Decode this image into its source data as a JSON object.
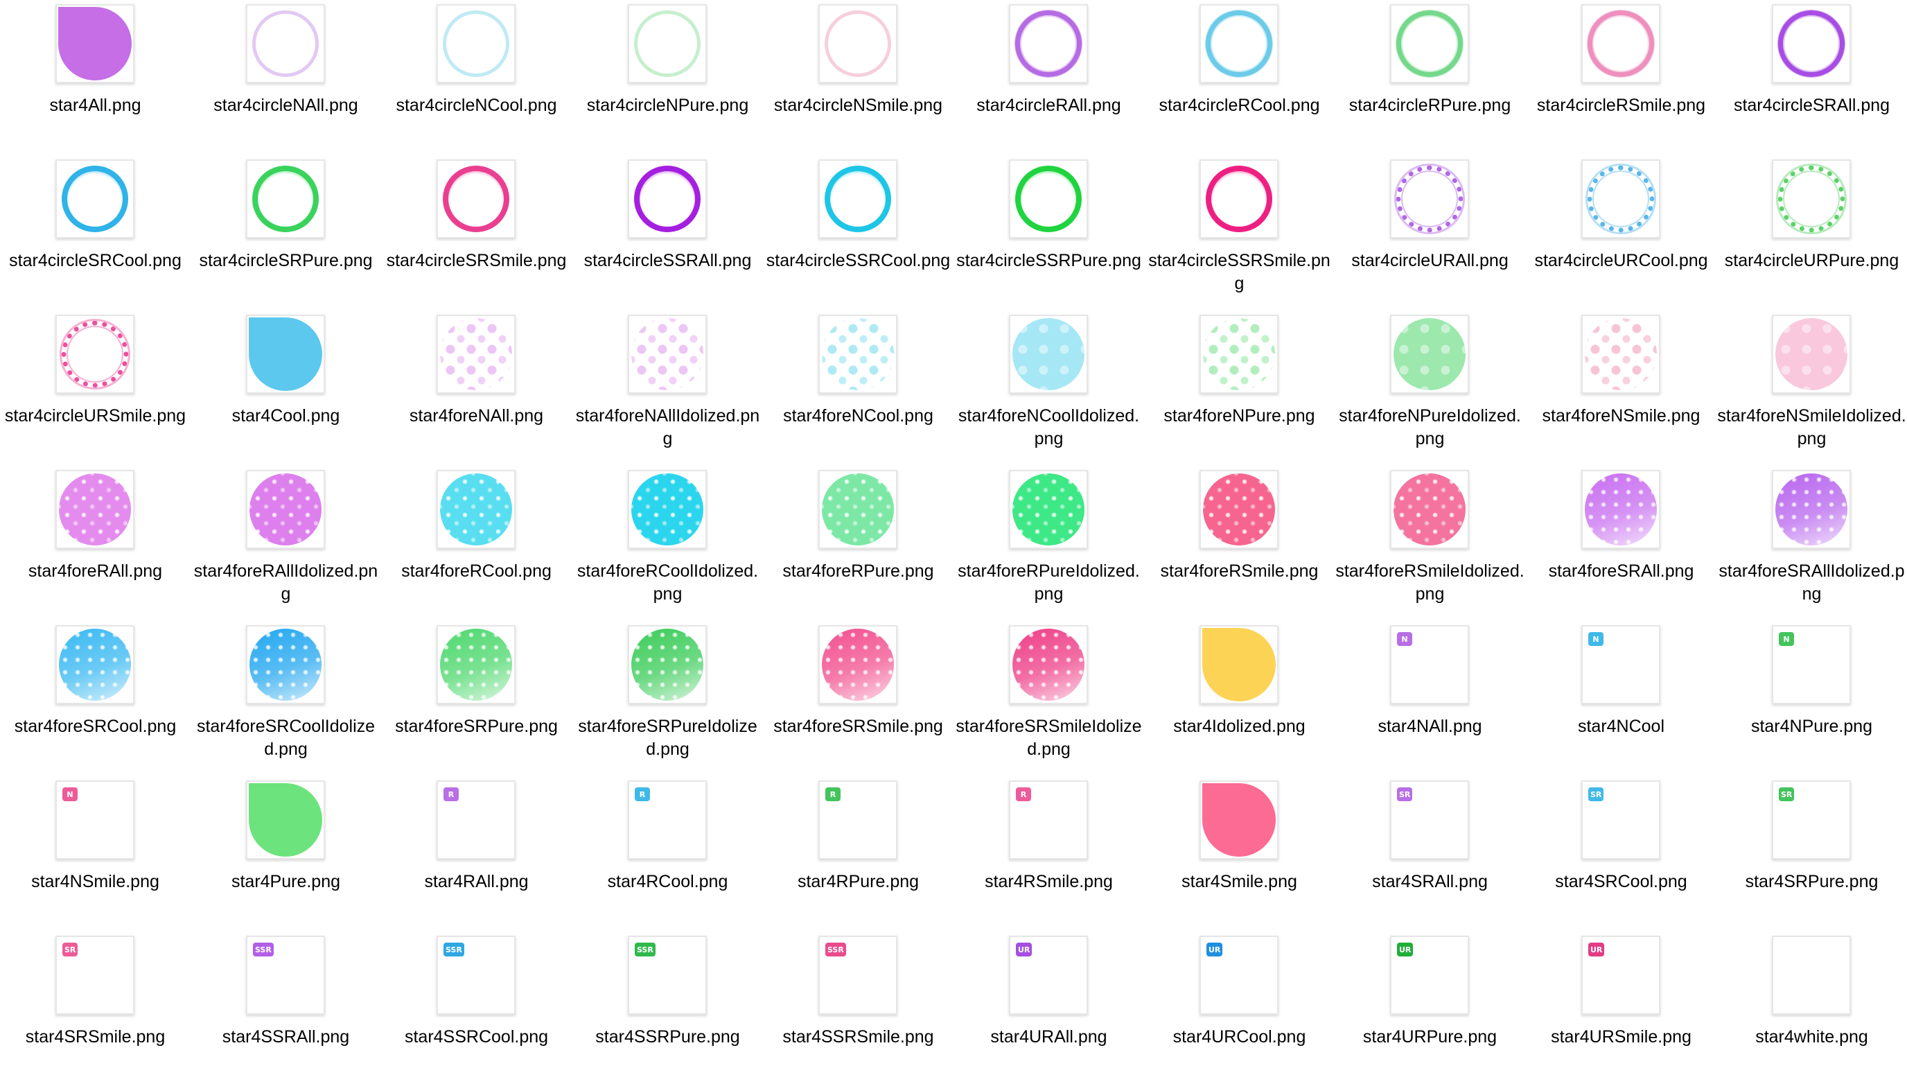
{
  "files": [
    {
      "label": "star4All.png",
      "kind": "blob",
      "color": "#c56ee6"
    },
    {
      "label": "star4circleNAll.png",
      "kind": "circle",
      "color": "#e2c9f2",
      "style": "thin"
    },
    {
      "label": "star4circleNCool.png",
      "kind": "circle",
      "color": "#bfeaf4",
      "style": "thin"
    },
    {
      "label": "star4circleNPure.png",
      "kind": "circle",
      "color": "#c6efcd",
      "style": "thin"
    },
    {
      "label": "star4circleNSmile.png",
      "kind": "circle",
      "color": "#f6cfdc",
      "style": "thin"
    },
    {
      "label": "star4circleRAll.png",
      "kind": "circle",
      "color": "#b56be3",
      "style": "ring"
    },
    {
      "label": "star4circleRCool.png",
      "kind": "circle",
      "color": "#6ccbe8",
      "style": "ring"
    },
    {
      "label": "star4circleRPure.png",
      "kind": "circle",
      "color": "#74d88a",
      "style": "ring"
    },
    {
      "label": "star4circleRSmile.png",
      "kind": "circle",
      "color": "#ee8fbd",
      "style": "ring"
    },
    {
      "label": "star4circleSRAll.png",
      "kind": "circle",
      "color": "#a84de3",
      "style": "ring"
    },
    {
      "label": "star4circleSRCool.png",
      "kind": "circle",
      "color": "#2fb3e8",
      "style": "bold"
    },
    {
      "label": "star4circleSRPure.png",
      "kind": "circle",
      "color": "#39d35c",
      "style": "bold"
    },
    {
      "label": "star4circleSRSmile.png",
      "kind": "circle",
      "color": "#ea3f90",
      "style": "bold"
    },
    {
      "label": "star4circleSSRAll.png",
      "kind": "circle",
      "color": "#a51fe0",
      "style": "bold"
    },
    {
      "label": "star4circleSSRCool.png",
      "kind": "circle",
      "color": "#1ec5e6",
      "style": "bold"
    },
    {
      "label": "star4circleSSRPure.png",
      "kind": "circle",
      "color": "#1fd43e",
      "style": "bold"
    },
    {
      "label": "star4circleSSRSmile.png",
      "kind": "circle",
      "color": "#ee1f82",
      "style": "bold"
    },
    {
      "label": "star4circleURAll.png",
      "kind": "circle",
      "color": "#b067e6",
      "style": "dotted"
    },
    {
      "label": "star4circleURCool.png",
      "kind": "circle",
      "color": "#5bb6e8",
      "style": "dotted"
    },
    {
      "label": "star4circleURPure.png",
      "kind": "circle",
      "color": "#5dd16a",
      "style": "dotted"
    },
    {
      "label": "star4circleURSmile.png",
      "kind": "circle",
      "color": "#ec4f9c",
      "style": "dotted"
    },
    {
      "label": "star4Cool.png",
      "kind": "blob",
      "color": "#5cc8ee"
    },
    {
      "label": "star4foreNAll.png",
      "kind": "fore",
      "color": "#ecc6f5",
      "style": "dots"
    },
    {
      "label": "star4foreNAllIdolized.png",
      "kind": "fore",
      "color": "#ecc6f5",
      "style": "dots"
    },
    {
      "label": "star4foreNCool.png",
      "kind": "fore",
      "color": "#aeeaf3",
      "style": "dots"
    },
    {
      "label": "star4foreNCoolIdolized.png",
      "kind": "fore",
      "color": "#a6e7f5",
      "style": "dotsfill"
    },
    {
      "label": "star4foreNPure.png",
      "kind": "fore",
      "color": "#b2eebd",
      "style": "dots"
    },
    {
      "label": "star4foreNPureIdolized.png",
      "kind": "fore",
      "color": "#9ce8ad",
      "style": "dotsfill"
    },
    {
      "label": "star4foreNSmile.png",
      "kind": "fore",
      "color": "#f7c4d6",
      "style": "dots"
    },
    {
      "label": "star4foreNSmileIdolized.png",
      "kind": "fore",
      "color": "#f9c8dd",
      "style": "dotsfill"
    },
    {
      "label": "star4foreRAll.png",
      "kind": "fore",
      "color": "#e48bee",
      "style": "sparkle"
    },
    {
      "label": "star4foreRAllIdolized.png",
      "kind": "fore",
      "color": "#dd7fec",
      "style": "sparkle"
    },
    {
      "label": "star4foreRCool.png",
      "kind": "fore",
      "color": "#58def0",
      "style": "sparkle"
    },
    {
      "label": "star4foreRCoolIdolized.png",
      "kind": "fore",
      "color": "#2cd5ee",
      "style": "sparkle"
    },
    {
      "label": "star4foreRPure.png",
      "kind": "fore",
      "color": "#7de8a6",
      "style": "sparkle"
    },
    {
      "label": "star4foreRPureIdolized.png",
      "kind": "fore",
      "color": "#3ee886",
      "style": "sparkle"
    },
    {
      "label": "star4foreRSmile.png",
      "kind": "fore",
      "color": "#f6658f",
      "style": "sparkle"
    },
    {
      "label": "star4foreRSmileIdolized.png",
      "kind": "fore",
      "color": "#f4739f",
      "style": "sparkle"
    },
    {
      "label": "star4foreSRAll.png",
      "kind": "fore",
      "color": "#c86ff0",
      "style": "gradient"
    },
    {
      "label": "star4foreSRAllIdolized.png",
      "kind": "fore",
      "color": "#b866ee",
      "style": "gradient"
    },
    {
      "label": "star4foreSRCool.png",
      "kind": "fore",
      "color": "#3ab9f2",
      "style": "gradient"
    },
    {
      "label": "star4foreSRCoolIdolized.png",
      "kind": "fore",
      "color": "#23a7ef",
      "style": "gradient"
    },
    {
      "label": "star4foreSRPure.png",
      "kind": "fore",
      "color": "#4ed86e",
      "style": "gradient"
    },
    {
      "label": "star4foreSRPureIdolized.png",
      "kind": "fore",
      "color": "#3ccc5a",
      "style": "gradient"
    },
    {
      "label": "star4foreSRSmile.png",
      "kind": "fore",
      "color": "#f2508f",
      "style": "gradient"
    },
    {
      "label": "star4foreSRSmileIdolized.png",
      "kind": "fore",
      "color": "#ee3f88",
      "style": "gradient"
    },
    {
      "label": "star4Idolized.png",
      "kind": "blob",
      "color": "#fdd356"
    },
    {
      "label": "star4NAll.png",
      "kind": "badge",
      "badge": "N",
      "color": "#b86ee6"
    },
    {
      "label": "star4NCool",
      "kind": "badge",
      "badge": "N",
      "color": "#3fb9e8"
    },
    {
      "label": "star4NPure.png",
      "kind": "badge",
      "badge": "N",
      "color": "#43c45c"
    },
    {
      "label": "star4NSmile.png",
      "kind": "badge",
      "badge": "N",
      "color": "#ec5c9a"
    },
    {
      "label": "star4Pure.png",
      "kind": "blob",
      "color": "#6de37d"
    },
    {
      "label": "star4RAll.png",
      "kind": "badge",
      "badge": "R",
      "color": "#b86ee6"
    },
    {
      "label": "star4RCool.png",
      "kind": "badge",
      "badge": "R",
      "color": "#3fb9e8"
    },
    {
      "label": "star4RPure.png",
      "kind": "badge",
      "badge": "R",
      "color": "#43c45c"
    },
    {
      "label": "star4RSmile.png",
      "kind": "badge",
      "badge": "R",
      "color": "#ec5c9a"
    },
    {
      "label": "star4Smile.png",
      "kind": "blob",
      "color": "#fc6b94"
    },
    {
      "label": "star4SRAll.png",
      "kind": "badge",
      "badge": "SR",
      "color": "#b86ee6"
    },
    {
      "label": "star4SRCool.png",
      "kind": "badge",
      "badge": "SR",
      "color": "#3fb9e8"
    },
    {
      "label": "star4SRPure.png",
      "kind": "badge",
      "badge": "SR",
      "color": "#43c45c"
    },
    {
      "label": "star4SRSmile.png",
      "kind": "badge",
      "badge": "SR",
      "color": "#ec5c9a"
    },
    {
      "label": "star4SSRAll.png",
      "kind": "badge",
      "badge": "SSR",
      "color": "#b35fe6"
    },
    {
      "label": "star4SSRCool.png",
      "kind": "badge",
      "badge": "SSR",
      "color": "#2ea7e3"
    },
    {
      "label": "star4SSRPure.png",
      "kind": "badge",
      "badge": "SSR",
      "color": "#31b84a"
    },
    {
      "label": "star4SSRSmile.png",
      "kind": "badge",
      "badge": "SSR",
      "color": "#ea4b8d"
    },
    {
      "label": "star4URAll.png",
      "kind": "badge",
      "badge": "UR",
      "color": "#a54fe0"
    },
    {
      "label": "star4URCool.png",
      "kind": "badge",
      "badge": "UR",
      "color": "#1f8fe0"
    },
    {
      "label": "star4URPure.png",
      "kind": "badge",
      "badge": "UR",
      "color": "#1fae38"
    },
    {
      "label": "star4URSmile.png",
      "kind": "badge",
      "badge": "UR",
      "color": "#e33b84"
    },
    {
      "label": "star4white.png",
      "kind": "empty",
      "color": "#ffffff"
    }
  ]
}
